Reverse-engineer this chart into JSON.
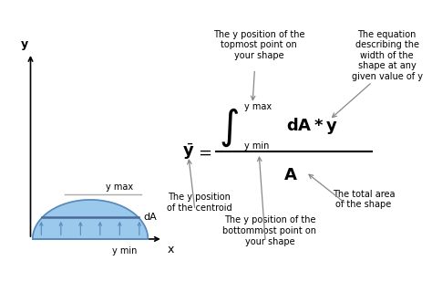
{
  "bg_color": "#ffffff",
  "shape_fill": "#7ab8e8",
  "shape_edge": "#5a8ab8",
  "axis_color": "#000000",
  "arrow_color": "#888888",
  "text_color": "#000000",
  "line_color": "#4a6a9a",
  "fig_width": 4.74,
  "fig_height": 3.2,
  "dpi": 100,
  "xlim": [
    0,
    10
  ],
  "ylim": [
    0,
    10
  ]
}
